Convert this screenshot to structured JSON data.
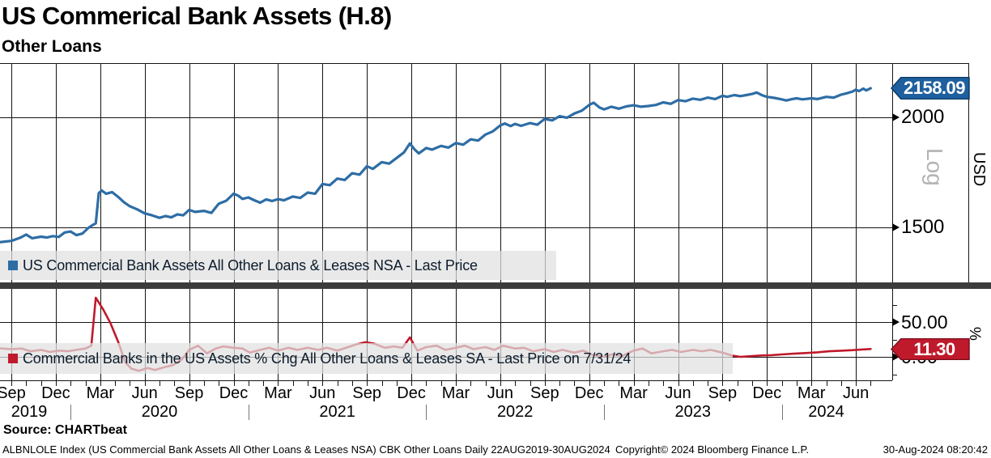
{
  "header": {
    "title": "US Commerical Bank Assets (H.8)",
    "subtitle": "Other Loans"
  },
  "chart_data": [
    {
      "type": "line",
      "panel": "top",
      "legend": "US Commercial Bank Assets All Other Loans & Leases NSA - Last Price",
      "color": "#2d6da5",
      "badge_fill": "#1e5f9f",
      "badge_stroke": "#0e3b66",
      "y_axis": {
        "title": "USD",
        "scale_label": "Log",
        "ticks": [
          2000,
          1500
        ],
        "tick_labels": [
          "2000",
          "1500"
        ]
      },
      "last_price": 2158.09,
      "last_price_label": "2158.09",
      "x_unit": "months_since_sep_2019",
      "points": [
        [
          -1.3,
          1440
        ],
        [
          0,
          1448
        ],
        [
          0.6,
          1460
        ],
        [
          1,
          1472
        ],
        [
          1.4,
          1458
        ],
        [
          2,
          1464
        ],
        [
          2.4,
          1461
        ],
        [
          2.8,
          1466
        ],
        [
          3.2,
          1463
        ],
        [
          3.6,
          1480
        ],
        [
          4,
          1484
        ],
        [
          4.4,
          1470
        ],
        [
          4.8,
          1476
        ],
        [
          5.2,
          1498
        ],
        [
          5.5,
          1510
        ],
        [
          5.7,
          1516
        ],
        [
          5.9,
          1640
        ],
        [
          6.1,
          1652
        ],
        [
          6.4,
          1638
        ],
        [
          6.8,
          1645
        ],
        [
          7.2,
          1625
        ],
        [
          7.6,
          1602
        ],
        [
          8,
          1585
        ],
        [
          8.5,
          1572
        ],
        [
          9,
          1556
        ],
        [
          9.5,
          1548
        ],
        [
          10,
          1538
        ],
        [
          10.4,
          1545
        ],
        [
          10.8,
          1540
        ],
        [
          11.2,
          1552
        ],
        [
          11.6,
          1548
        ],
        [
          12,
          1570
        ],
        [
          12.4,
          1562
        ],
        [
          13,
          1566
        ],
        [
          13.5,
          1558
        ],
        [
          14,
          1596
        ],
        [
          14.5,
          1608
        ],
        [
          15,
          1638
        ],
        [
          15.3,
          1630
        ],
        [
          15.6,
          1616
        ],
        [
          16,
          1622
        ],
        [
          16.4,
          1610
        ],
        [
          16.8,
          1600
        ],
        [
          17.2,
          1614
        ],
        [
          17.6,
          1607
        ],
        [
          18,
          1615
        ],
        [
          18.4,
          1610
        ],
        [
          19,
          1626
        ],
        [
          19.5,
          1620
        ],
        [
          20,
          1643
        ],
        [
          20.5,
          1638
        ],
        [
          21,
          1680
        ],
        [
          21.5,
          1675
        ],
        [
          22,
          1704
        ],
        [
          22.5,
          1698
        ],
        [
          23,
          1728
        ],
        [
          23.5,
          1722
        ],
        [
          24,
          1760
        ],
        [
          24.4,
          1748
        ],
        [
          25,
          1779
        ],
        [
          25.5,
          1772
        ],
        [
          26,
          1798
        ],
        [
          26.5,
          1825
        ],
        [
          26.9,
          1868
        ],
        [
          27.2,
          1840
        ],
        [
          27.5,
          1820
        ],
        [
          28,
          1846
        ],
        [
          28.4,
          1838
        ],
        [
          29,
          1856
        ],
        [
          29.5,
          1848
        ],
        [
          30,
          1870
        ],
        [
          30.5,
          1862
        ],
        [
          31,
          1888
        ],
        [
          31.5,
          1882
        ],
        [
          32,
          1912
        ],
        [
          32.5,
          1928
        ],
        [
          33,
          1958
        ],
        [
          33.3,
          1968
        ],
        [
          33.7,
          1955
        ],
        [
          34,
          1966
        ],
        [
          34.4,
          1956
        ],
        [
          35,
          1970
        ],
        [
          35.5,
          1962
        ],
        [
          36,
          1992
        ],
        [
          36.5,
          1984
        ],
        [
          37,
          2006
        ],
        [
          37.5,
          1998
        ],
        [
          38,
          2020
        ],
        [
          38.5,
          2035
        ],
        [
          39,
          2066
        ],
        [
          39.3,
          2078
        ],
        [
          39.7,
          2052
        ],
        [
          40,
          2042
        ],
        [
          40.5,
          2056
        ],
        [
          41,
          2046
        ],
        [
          41.5,
          2058
        ],
        [
          42,
          2064
        ],
        [
          42.5,
          2056
        ],
        [
          43,
          2060
        ],
        [
          43.5,
          2066
        ],
        [
          44,
          2080
        ],
        [
          44.5,
          2072
        ],
        [
          45,
          2092
        ],
        [
          45.5,
          2086
        ],
        [
          46,
          2100
        ],
        [
          46.5,
          2094
        ],
        [
          47,
          2106
        ],
        [
          47.5,
          2098
        ],
        [
          48,
          2116
        ],
        [
          48.3,
          2110
        ],
        [
          48.8,
          2120
        ],
        [
          49.2,
          2114
        ],
        [
          49.6,
          2120
        ],
        [
          50,
          2126
        ],
        [
          50.3,
          2134
        ],
        [
          50.7,
          2118
        ],
        [
          51,
          2110
        ],
        [
          51.5,
          2104
        ],
        [
          52,
          2096
        ],
        [
          52.3,
          2090
        ],
        [
          52.7,
          2098
        ],
        [
          53,
          2102
        ],
        [
          53.4,
          2096
        ],
        [
          54,
          2102
        ],
        [
          54.4,
          2098
        ],
        [
          55,
          2110
        ],
        [
          55.5,
          2106
        ],
        [
          56,
          2122
        ],
        [
          56.4,
          2130
        ],
        [
          56.8,
          2140
        ],
        [
          57,
          2150
        ],
        [
          57.2,
          2142
        ],
        [
          57.5,
          2156
        ],
        [
          57.7,
          2146
        ],
        [
          58,
          2158
        ]
      ]
    },
    {
      "type": "line",
      "panel": "bottom",
      "legend": "Commercial Banks in the US Assets % Chg All Other Loans & Leases SA - Last Price on 7/31/24",
      "color": "#bf1a2c",
      "badge_fill": "#bf1a2c",
      "badge_stroke": "#7d0e1d",
      "y_axis": {
        "title": "%",
        "ticks": [
          50,
          0
        ],
        "tick_labels": [
          "50.00",
          "0.00"
        ],
        "minor_ticks": [
          75,
          25,
          -25
        ]
      },
      "last_price": 11.3,
      "last_price_label": "11.30",
      "x_unit": "months_since_sep_2019",
      "points": [
        [
          -1.3,
          13
        ],
        [
          0,
          11
        ],
        [
          0.7,
          12
        ],
        [
          1.3,
          8
        ],
        [
          2,
          10
        ],
        [
          2.6,
          7
        ],
        [
          3.2,
          9
        ],
        [
          3.8,
          8
        ],
        [
          4.4,
          10
        ],
        [
          5,
          12
        ],
        [
          5.4,
          16
        ],
        [
          5.7,
          85
        ],
        [
          6.2,
          68
        ],
        [
          6.7,
          48
        ],
        [
          7.2,
          22
        ],
        [
          7.7,
          -8
        ],
        [
          8.1,
          -17
        ],
        [
          8.6,
          -20
        ],
        [
          9.2,
          -16
        ],
        [
          9.7,
          -19
        ],
        [
          10.3,
          -15
        ],
        [
          10.9,
          -12
        ],
        [
          11.5,
          -4
        ],
        [
          12,
          10
        ],
        [
          12.6,
          16
        ],
        [
          13.2,
          5
        ],
        [
          13.8,
          12
        ],
        [
          14.3,
          15
        ],
        [
          15,
          13
        ],
        [
          15.6,
          12
        ],
        [
          16.1,
          6
        ],
        [
          16.8,
          10
        ],
        [
          17.4,
          13
        ],
        [
          18,
          9
        ],
        [
          18.7,
          13
        ],
        [
          19.3,
          10
        ],
        [
          20,
          13
        ],
        [
          20.7,
          10
        ],
        [
          21.3,
          13
        ],
        [
          22,
          9
        ],
        [
          22.6,
          13
        ],
        [
          23.3,
          18
        ],
        [
          23.9,
          21
        ],
        [
          24.5,
          19
        ],
        [
          25.2,
          13
        ],
        [
          25.8,
          15
        ],
        [
          26.4,
          13
        ],
        [
          26.9,
          28
        ],
        [
          27.4,
          9
        ],
        [
          28,
          14
        ],
        [
          28.7,
          16
        ],
        [
          29.3,
          10
        ],
        [
          30,
          13
        ],
        [
          30.6,
          16
        ],
        [
          31.2,
          11
        ],
        [
          32,
          14
        ],
        [
          32.6,
          10
        ],
        [
          33.2,
          16
        ],
        [
          34,
          12
        ],
        [
          34.6,
          13
        ],
        [
          35.2,
          8
        ],
        [
          36,
          11
        ],
        [
          36.6,
          7
        ],
        [
          37.2,
          10
        ],
        [
          38,
          6
        ],
        [
          38.6,
          9
        ],
        [
          39.2,
          3
        ],
        [
          40,
          0
        ],
        [
          40.6,
          4
        ],
        [
          41.2,
          1
        ],
        [
          42,
          9
        ],
        [
          42.6,
          12
        ],
        [
          43.2,
          5
        ],
        [
          44,
          8
        ],
        [
          44.6,
          10
        ],
        [
          45.2,
          7
        ],
        [
          46,
          10
        ],
        [
          46.6,
          8
        ],
        [
          47.2,
          10
        ],
        [
          48,
          6
        ],
        [
          48.6,
          2
        ],
        [
          49.2,
          0
        ],
        [
          50,
          1
        ],
        [
          50.6,
          2
        ],
        [
          51.3,
          2.5
        ],
        [
          52,
          3.5
        ],
        [
          52.8,
          4.5
        ],
        [
          53.6,
          5.5
        ],
        [
          54.4,
          6.5
        ],
        [
          55.2,
          8
        ],
        [
          56,
          8.8
        ],
        [
          56.8,
          9.7
        ],
        [
          57.4,
          10.6
        ],
        [
          58,
          11.3
        ]
      ]
    }
  ],
  "x_axis": {
    "range_label": "22AUG2019-30AUG2024",
    "quarter_labels": [
      {
        "label": "Sep",
        "m": 0
      },
      {
        "label": "Dec",
        "m": 3
      },
      {
        "label": "Mar",
        "m": 6
      },
      {
        "label": "Jun",
        "m": 9
      },
      {
        "label": "Sep",
        "m": 12
      },
      {
        "label": "Dec",
        "m": 15
      },
      {
        "label": "Mar",
        "m": 18
      },
      {
        "label": "Jun",
        "m": 21
      },
      {
        "label": "Sep",
        "m": 24
      },
      {
        "label": "Dec",
        "m": 27
      },
      {
        "label": "Mar",
        "m": 30
      },
      {
        "label": "Jun",
        "m": 33
      },
      {
        "label": "Sep",
        "m": 36
      },
      {
        "label": "Dec",
        "m": 39
      },
      {
        "label": "Mar",
        "m": 42
      },
      {
        "label": "Jun",
        "m": 45
      },
      {
        "label": "Sep",
        "m": 48
      },
      {
        "label": "Dec",
        "m": 51
      },
      {
        "label": "Mar",
        "m": 54
      },
      {
        "label": "Jun",
        "m": 57
      }
    ],
    "years": [
      {
        "label": "2019",
        "m": 1.2
      },
      {
        "label": "2020",
        "m": 10
      },
      {
        "label": "2021",
        "m": 22
      },
      {
        "label": "2022",
        "m": 34
      },
      {
        "label": "2023",
        "m": 46
      },
      {
        "label": "2024",
        "m": 55
      }
    ],
    "year_separators_m": [
      4,
      16,
      28,
      40,
      52
    ]
  },
  "footer": {
    "source": "Source: CHARTbeat",
    "description": "ALBNLOLE Index (US Commercial Bank Assets All Other Loans & Leases NSA) CBK Other Loans  Daily 22AUG2019-30AUG2024",
    "copyright": "Copyright© 2024 Bloomberg Finance L.P.",
    "timestamp": "30-Aug-2024 08:20:42"
  }
}
